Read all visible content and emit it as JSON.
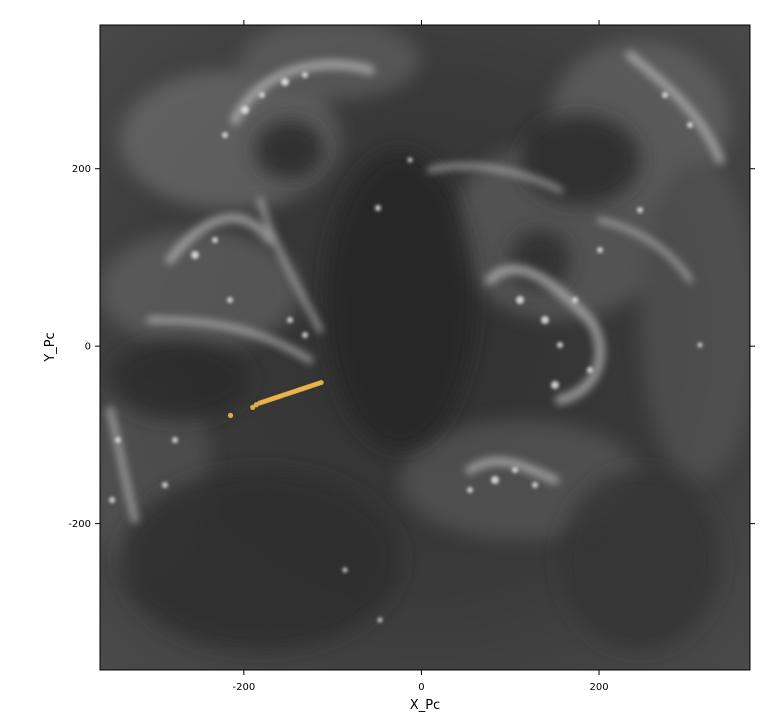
{
  "chart_data": {
    "type": "scatter",
    "xlabel": "X_Pc",
    "ylabel": "Y_Pc",
    "xlim": [
      -362,
      370
    ],
    "ylim": [
      -365,
      362
    ],
    "x_ticks": [
      -200,
      0,
      200
    ],
    "y_ticks": [
      -200,
      0,
      200
    ],
    "x_tick_labels": [
      "-200",
      "0",
      "200"
    ],
    "y_tick_labels": [
      "-200",
      "0",
      "200"
    ],
    "grid": false,
    "background": "grayscale density image (dark gray with bright white filamentary gas structures)",
    "colors": {
      "points": "#f2b84b",
      "frame": "#000000",
      "background_base": "#3a3a3a",
      "filaments": "#d8d8d8"
    },
    "series": [
      {
        "x": [
          -113,
          -116,
          -119,
          -122,
          -125,
          -128,
          -131,
          -134,
          -137,
          -140,
          -143,
          -146,
          -149,
          -152,
          -155,
          -158,
          -161,
          -164,
          -167,
          -170,
          -173,
          -176,
          -179,
          -182,
          -186,
          -190,
          -215
        ],
        "y": [
          -41,
          -42,
          -43,
          -44,
          -45,
          -46,
          -47,
          -48,
          -49,
          -50,
          -51,
          -52,
          -53,
          -54,
          -55,
          -56,
          -57,
          -58,
          -59,
          -60,
          -61,
          -62,
          -63,
          -64,
          -66,
          -69,
          -78
        ]
      }
    ]
  }
}
